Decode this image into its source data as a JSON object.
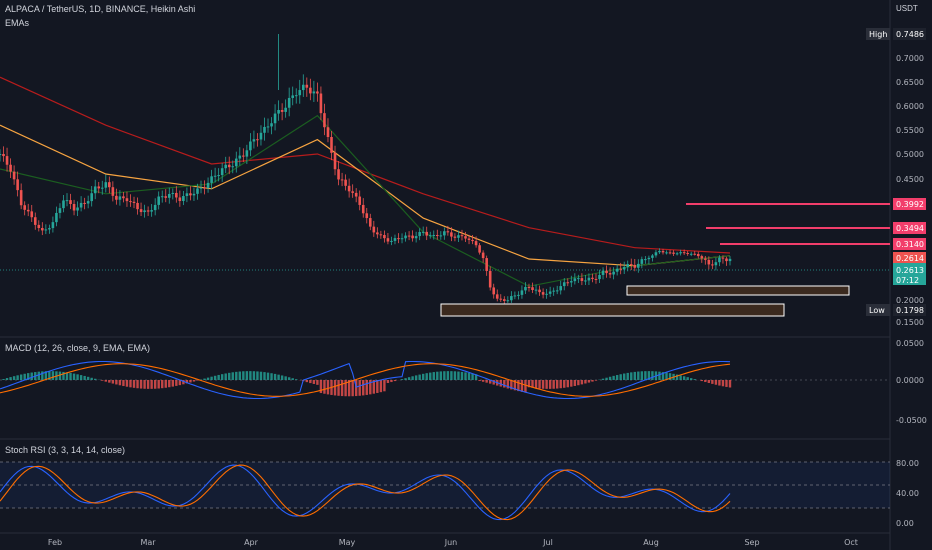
{
  "header": {
    "symbol": "ALPACA / TetherUS, 1D, BINANCE, Heikin Ashi",
    "indicator": "EMAs",
    "currency": "USDT"
  },
  "price_axis": {
    "ticks": [
      "0.7000",
      "0.6500",
      "0.6000",
      "0.5500",
      "0.5000",
      "0.4500",
      "0.2000",
      "0.1500"
    ],
    "high_label": "High",
    "high_value": "0.7486",
    "low_label": "Low",
    "low_value": "0.1798",
    "level_labels": [
      "0.3992",
      "0.3494",
      "0.3140"
    ],
    "current_red": "0.2614",
    "current_green": "0.2613",
    "countdown": "07:12"
  },
  "macd": {
    "title": "MACD (12, 26, close, 9, EMA, EMA)",
    "ticks": [
      "0.0500",
      "0.0000",
      "-0.0500"
    ]
  },
  "stoch": {
    "title": "Stoch RSI (3, 3, 14, 14, close)",
    "ticks": [
      "80.00",
      "40.00",
      "0.00"
    ]
  },
  "time_axis": [
    "Feb",
    "Mar",
    "Apr",
    "May",
    "Jun",
    "Jul",
    "Aug",
    "Sep",
    "Oct"
  ],
  "colors": {
    "bg": "#131722",
    "up": "#26a69a",
    "down": "#ef5350",
    "ema_red": "#b71c1c",
    "ema_orange": "#f7a441",
    "ema_green": "#1b5e20",
    "level": "#f23e6b",
    "box": "#3b2a1f",
    "macd_blue": "#2962ff",
    "macd_orange": "#ff6d00",
    "stoch_blue": "#2962ff",
    "stoch_orange": "#ff6d00"
  },
  "chart_data": {
    "type": "candlestick",
    "title": "ALPACA / TetherUS, 1D, BINANCE, Heikin Ashi",
    "x_ticks": [
      "Feb",
      "Mar",
      "Apr",
      "May",
      "Jun",
      "Jul",
      "Aug",
      "Sep",
      "Oct"
    ],
    "y_ticks": [
      0.7,
      0.65,
      0.6,
      0.55,
      0.5,
      0.45,
      0.2,
      0.15
    ],
    "high": 0.7486,
    "low": 0.1798,
    "close_series": [
      [
        0,
        0.5
      ],
      [
        3,
        0.47
      ],
      [
        6,
        0.4
      ],
      [
        9,
        0.37
      ],
      [
        12,
        0.34
      ],
      [
        15,
        0.36
      ],
      [
        18,
        0.41
      ],
      [
        21,
        0.39
      ],
      [
        24,
        0.4
      ],
      [
        27,
        0.43
      ],
      [
        30,
        0.44
      ],
      [
        33,
        0.41
      ],
      [
        36,
        0.41
      ],
      [
        39,
        0.39
      ],
      [
        42,
        0.38
      ],
      [
        45,
        0.41
      ],
      [
        48,
        0.42
      ],
      [
        51,
        0.41
      ],
      [
        54,
        0.42
      ],
      [
        57,
        0.43
      ],
      [
        60,
        0.45
      ],
      [
        63,
        0.47
      ],
      [
        66,
        0.48
      ],
      [
        69,
        0.5
      ],
      [
        72,
        0.53
      ],
      [
        75,
        0.55
      ],
      [
        78,
        0.58
      ],
      [
        81,
        0.6
      ],
      [
        84,
        0.63
      ],
      [
        87,
        0.64
      ],
      [
        90,
        0.62
      ],
      [
        92,
        0.56
      ],
      [
        94,
        0.5
      ],
      [
        96,
        0.45
      ],
      [
        99,
        0.43
      ],
      [
        102,
        0.4
      ],
      [
        105,
        0.35
      ],
      [
        108,
        0.33
      ],
      [
        111,
        0.32
      ],
      [
        114,
        0.33
      ],
      [
        117,
        0.33
      ],
      [
        120,
        0.34
      ],
      [
        123,
        0.33
      ],
      [
        126,
        0.34
      ],
      [
        129,
        0.33
      ],
      [
        132,
        0.33
      ],
      [
        135,
        0.31
      ],
      [
        137,
        0.26
      ],
      [
        139,
        0.22
      ],
      [
        141,
        0.2
      ],
      [
        144,
        0.2
      ],
      [
        147,
        0.21
      ],
      [
        150,
        0.22
      ],
      [
        153,
        0.21
      ],
      [
        156,
        0.21
      ],
      [
        159,
        0.22
      ],
      [
        162,
        0.23
      ],
      [
        165,
        0.23
      ],
      [
        168,
        0.23
      ],
      [
        171,
        0.24
      ],
      [
        174,
        0.24
      ],
      [
        177,
        0.25
      ],
      [
        180,
        0.25
      ],
      [
        183,
        0.26
      ],
      [
        185,
        0.27
      ],
      [
        187,
        0.29
      ],
      [
        189,
        0.28
      ],
      [
        192,
        0.28
      ],
      [
        195,
        0.28
      ],
      [
        198,
        0.27
      ],
      [
        201,
        0.25
      ],
      [
        204,
        0.26
      ],
      [
        207,
        0.26
      ]
    ],
    "ema_red": [
      [
        0,
        0.66
      ],
      [
        30,
        0.56
      ],
      [
        60,
        0.48
      ],
      [
        90,
        0.5
      ],
      [
        120,
        0.42
      ],
      [
        150,
        0.35
      ],
      [
        180,
        0.3
      ],
      [
        207,
        0.28
      ]
    ],
    "ema_orange": [
      [
        0,
        0.56
      ],
      [
        30,
        0.46
      ],
      [
        60,
        0.43
      ],
      [
        90,
        0.53
      ],
      [
        120,
        0.37
      ],
      [
        150,
        0.26
      ],
      [
        180,
        0.25
      ],
      [
        207,
        0.27
      ]
    ],
    "ema_green": [
      [
        0,
        0.47
      ],
      [
        30,
        0.42
      ],
      [
        60,
        0.44
      ],
      [
        90,
        0.58
      ],
      [
        120,
        0.34
      ],
      [
        150,
        0.22
      ],
      [
        180,
        0.25
      ],
      [
        207,
        0.27
      ]
    ],
    "levels": [
      0.3992,
      0.3494,
      0.314
    ],
    "support_zones": [
      [
        0.196,
        0.212
      ],
      [
        0.169,
        0.189
      ]
    ],
    "macd_ticks": [
      0.05,
      0.0,
      -0.05
    ],
    "stoch_ticks": [
      80,
      40,
      0
    ]
  }
}
